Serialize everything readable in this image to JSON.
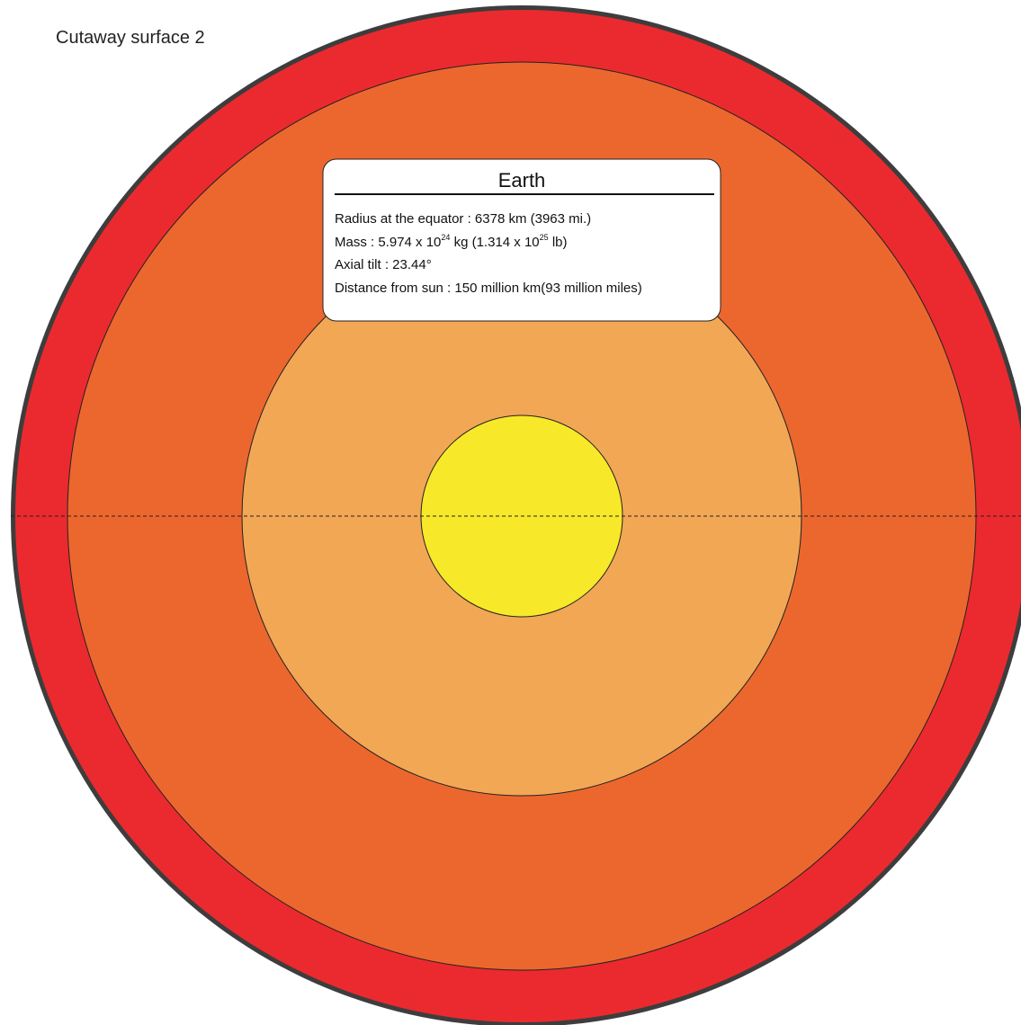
{
  "header": {
    "title": "Cutaway surface 2"
  },
  "info": {
    "title": "Earth",
    "radius": "Radius at the equator : 6378 km (3963 mi.)",
    "mass_parts": [
      "Mass : 5.974 x 10",
      "24",
      " kg (1.314 x 10",
      "25",
      " lb)"
    ],
    "tilt": "Axial tilt : 23.44°",
    "distance": "Distance from sun : 150 million km(93 million miles)"
  }
}
